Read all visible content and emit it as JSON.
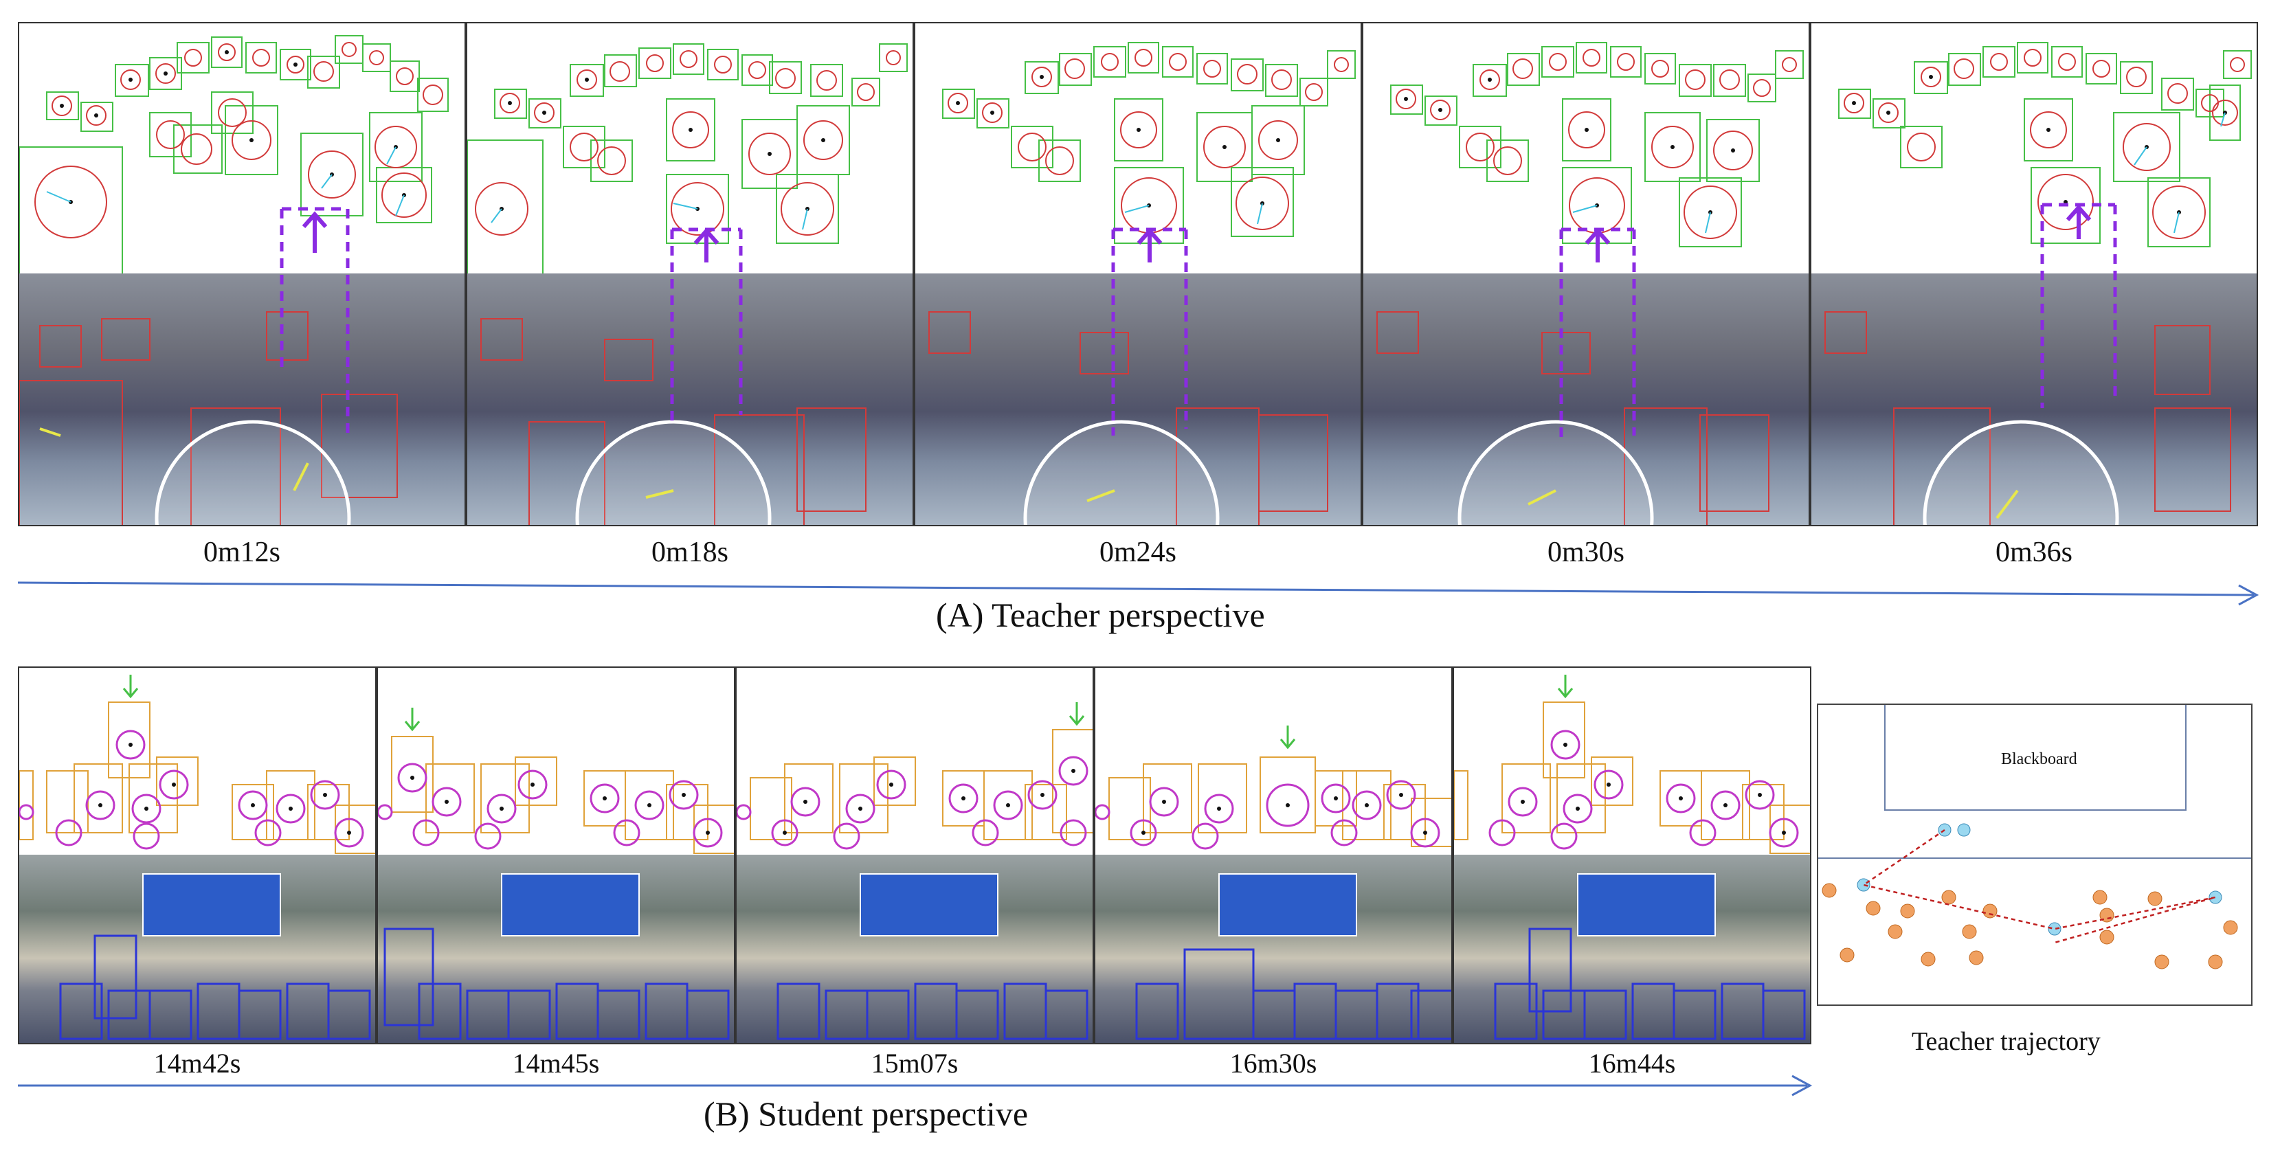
{
  "panel_a": {
    "caption": "(A) Teacher perspective",
    "timestamps": [
      "0m12s",
      "0m18s",
      "0m24s",
      "0m30s",
      "0m36s"
    ]
  },
  "panel_b": {
    "caption": "(B) Student perspective",
    "timestamps": [
      "14m42s",
      "14m45s",
      "15m07s",
      "16m30s",
      "16m44s"
    ],
    "trajectory": {
      "title": "Teacher trajectory",
      "blackboard_label": "Blackboard"
    }
  },
  "colors": {
    "timeline_arrow": "#4a72c4",
    "purple_marker": "#8a2be2",
    "green_box": "#46c046",
    "orange_box": "#e0a23a",
    "magenta_circle": "#c038c8",
    "red_circle": "#d23a3a",
    "blue_box": "#2b35d6",
    "trajectory_path": "#c02020"
  }
}
